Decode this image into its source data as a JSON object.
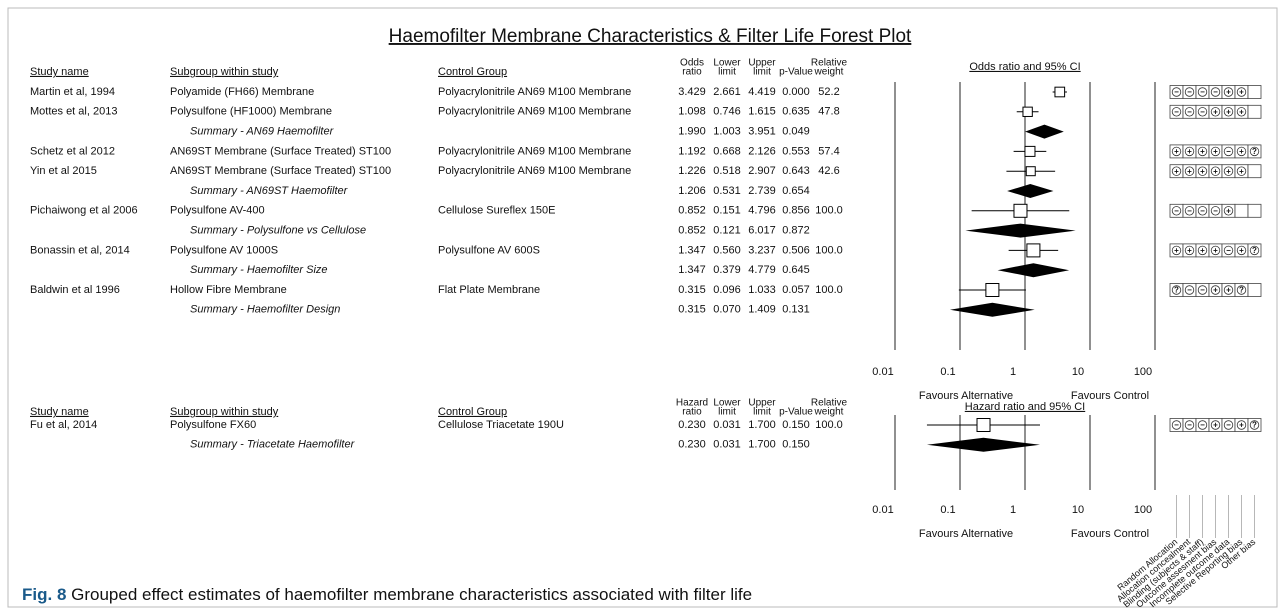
{
  "chart_data": [
    {
      "type": "forest",
      "title": "Haemofilter Membrane Characteristics & Filter Life Forest Plot",
      "columns": [
        [
          "Study name"
        ],
        [
          "Subgroup within study"
        ],
        [
          "Control Group"
        ],
        [
          "Odds",
          "ratio"
        ],
        [
          "Lower",
          "limit"
        ],
        [
          "Upper",
          "limit"
        ],
        [
          "p-Value"
        ],
        [
          "Relative",
          "weight"
        ]
      ],
      "axis_title": "Odds ratio and 95% CI",
      "xscale": "log",
      "xlim": [
        0.01,
        100
      ],
      "xticks": [
        0.01,
        0.1,
        1,
        10,
        100
      ],
      "grid": true,
      "favours": [
        "Favours Alternative",
        "Favours Control"
      ],
      "rows": [
        {
          "study": "Martin et al, 1994",
          "subgroup": "Polyamide (FH66) Membrane",
          "control": "Polyacrylonitrile AN69 M100 Membrane",
          "values": [
            3.429,
            2.661,
            4.419,
            0,
            52.2
          ],
          "value_labels": [
            "3.429",
            "2.661",
            "4.419",
            "0.000",
            "52.2"
          ],
          "bias": [
            "-",
            "-",
            "-",
            "-",
            "+",
            "+",
            null
          ]
        },
        {
          "study": "Mottes et al, 2013",
          "subgroup": "Polysulfone (HF1000) Membrane",
          "control": "Polyacrylonitrile AN69 M100 Membrane",
          "values": [
            1.098,
            0.746,
            1.615,
            0.635,
            47.8
          ],
          "value_labels": [
            "1.098",
            "0.746",
            "1.615",
            "0.635",
            "47.8"
          ],
          "bias": [
            "-",
            "-",
            "-",
            "+",
            "+",
            "+",
            null
          ]
        },
        {
          "summary": true,
          "subgroup": "Summary - AN69 Haemofilter",
          "values": [
            1.99,
            1.003,
            3.951,
            0.049
          ],
          "value_labels": [
            "1.990",
            "1.003",
            "3.951",
            "0.049"
          ]
        },
        {
          "study": "Schetz et al 2012",
          "subgroup": "AN69ST Membrane (Surface Treated) ST100",
          "control": "Polyacrylonitrile AN69 M100 Membrane",
          "values": [
            1.192,
            0.668,
            2.126,
            0.553,
            57.4
          ],
          "value_labels": [
            "1.192",
            "0.668",
            "2.126",
            "0.553",
            "57.4"
          ],
          "bias": [
            "+",
            "+",
            "+",
            "+",
            "-",
            "+",
            "?"
          ]
        },
        {
          "study": "Yin et al 2015",
          "subgroup": "AN69ST Membrane (Surface Treated) ST100",
          "control": "Polyacrylonitrile AN69 M100 Membrane",
          "values": [
            1.226,
            0.518,
            2.907,
            0.643,
            42.6
          ],
          "value_labels": [
            "1.226",
            "0.518",
            "2.907",
            "0.643",
            "42.6"
          ],
          "bias": [
            "+",
            "+",
            "+",
            "+",
            "+",
            "+",
            null
          ]
        },
        {
          "summary": true,
          "subgroup": "Summary - AN69ST Haemofilter",
          "values": [
            1.206,
            0.531,
            2.739,
            0.654
          ],
          "value_labels": [
            "1.206",
            "0.531",
            "2.739",
            "0.654"
          ]
        },
        {
          "study": "Pichaiwong et al 2006",
          "subgroup": "Polysulfone AV-400",
          "control": "Cellulose Sureflex 150E",
          "values": [
            0.852,
            0.151,
            4.796,
            0.856,
            100
          ],
          "value_labels": [
            "0.852",
            "0.151",
            "4.796",
            "0.856",
            "100.0"
          ],
          "bias": [
            "-",
            "-",
            "-",
            "-",
            "+",
            null,
            null
          ]
        },
        {
          "summary": true,
          "subgroup": "Summary - Polysulfone vs Cellulose",
          "values": [
            0.852,
            0.121,
            6.017,
            0.872
          ],
          "value_labels": [
            "0.852",
            "0.121",
            "6.017",
            "0.872"
          ]
        },
        {
          "study": "Bonassin et al, 2014",
          "subgroup": "Polysulfone AV 1000S",
          "control": "Polysulfone AV 600S",
          "values": [
            1.347,
            0.56,
            3.237,
            0.506,
            100
          ],
          "value_labels": [
            "1.347",
            "0.560",
            "3.237",
            "0.506",
            "100.0"
          ],
          "bias": [
            "+",
            "+",
            "+",
            "+",
            "-",
            "+",
            "?"
          ]
        },
        {
          "summary": true,
          "subgroup": "Summary - Haemofilter Size",
          "values": [
            1.347,
            0.379,
            4.779,
            0.645
          ],
          "value_labels": [
            "1.347",
            "0.379",
            "4.779",
            "0.645"
          ]
        },
        {
          "study": "Baldwin et al 1996",
          "subgroup": "Hollow Fibre Membrane",
          "control": "Flat Plate Membrane",
          "values": [
            0.315,
            0.096,
            1.033,
            0.057,
            100
          ],
          "value_labels": [
            "0.315",
            "0.096",
            "1.033",
            "0.057",
            "100.0"
          ],
          "bias": [
            "?",
            "-",
            "-",
            "+",
            "+",
            "?",
            null
          ]
        },
        {
          "summary": true,
          "subgroup": "Summary - Haemofilter Design",
          "values": [
            0.315,
            0.07,
            1.409,
            0.131
          ],
          "value_labels": [
            "0.315",
            "0.070",
            "1.409",
            "0.131"
          ]
        }
      ]
    },
    {
      "type": "forest",
      "columns": [
        [
          "Study name"
        ],
        [
          "Subgroup within study"
        ],
        [
          "Control Group"
        ],
        [
          "Hazard",
          "ratio"
        ],
        [
          "Lower",
          "limit"
        ],
        [
          "Upper",
          "limit"
        ],
        [
          "p-Value"
        ],
        [
          "Relative",
          "weight"
        ]
      ],
      "axis_title": "Hazard ratio and 95% CI",
      "xscale": "log",
      "xlim": [
        0.01,
        100
      ],
      "xticks": [
        0.01,
        0.1,
        1,
        10,
        100
      ],
      "grid": true,
      "favours": [
        "Favours Alternative",
        "Favours Control"
      ],
      "rows": [
        {
          "study": "Fu et al, 2014",
          "subgroup": "Polysulfone FX60",
          "control": "Cellulose Triacetate 190U",
          "values": [
            0.23,
            0.031,
            1.7,
            0.15,
            100
          ],
          "value_labels": [
            "0.230",
            "0.031",
            "1.700",
            "0.150",
            "100.0"
          ],
          "bias": [
            "-",
            "-",
            "-",
            "+",
            "-",
            "+",
            "?"
          ]
        },
        {
          "summary": true,
          "subgroup": "Summary - Triacetate Haemofilter",
          "values": [
            0.23,
            0.031,
            1.7,
            0.15
          ],
          "value_labels": [
            "0.230",
            "0.031",
            "1.700",
            "0.150"
          ]
        }
      ]
    }
  ],
  "risk_of_bias_domains": [
    "Random Allocation",
    "Allocation concealment",
    "Blinding (subjects & staff)",
    "Outcome assesment bias",
    "Incomplete outcome data",
    "Selective Reporting bias",
    "Other bias"
  ],
  "caption": {
    "label": "Fig. 8",
    "text": " Grouped effect estimates of haemofilter membrane characteristics associated with filter life"
  }
}
